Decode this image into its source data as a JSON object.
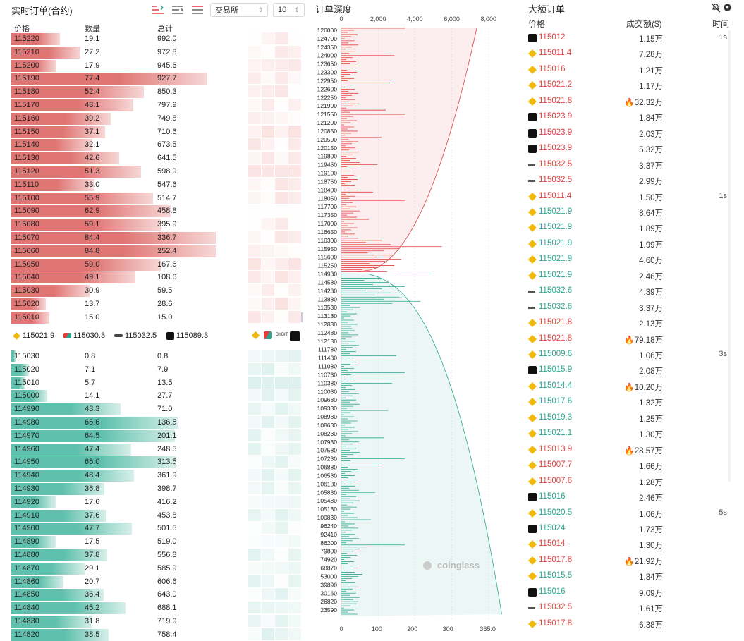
{
  "orderbook": {
    "title": "实时订单(合约)",
    "exchange_select": "交易所",
    "depth_select": "10",
    "price_header": "价格",
    "qty_header": "数量",
    "total_header": "总计",
    "asks": [
      [
        "115220",
        "19.1",
        "992.0"
      ],
      [
        "115210",
        "27.2",
        "972.8"
      ],
      [
        "115200",
        "17.9",
        "945.6"
      ],
      [
        "115190",
        "77.4",
        "927.7"
      ],
      [
        "115180",
        "52.4",
        "850.3"
      ],
      [
        "115170",
        "48.1",
        "797.9"
      ],
      [
        "115160",
        "39.2",
        "749.8"
      ],
      [
        "115150",
        "37.1",
        "710.6"
      ],
      [
        "115140",
        "32.1",
        "673.5"
      ],
      [
        "115130",
        "42.6",
        "641.5"
      ],
      [
        "115120",
        "51.3",
        "598.9"
      ],
      [
        "115110",
        "33.0",
        "547.6"
      ],
      [
        "115100",
        "55.9",
        "514.7"
      ],
      [
        "115090",
        "62.9",
        "458.8"
      ],
      [
        "115080",
        "59.1",
        "395.9"
      ],
      [
        "115070",
        "84.4",
        "336.7"
      ],
      [
        "115060",
        "84.8",
        "252.4"
      ],
      [
        "115050",
        "59.0",
        "167.6"
      ],
      [
        "115040",
        "49.1",
        "108.6"
      ],
      [
        "115030",
        "30.9",
        "59.5"
      ],
      [
        "115020",
        "13.7",
        "28.6"
      ],
      [
        "115010",
        "15.0",
        "15.0"
      ]
    ],
    "bids": [
      [
        "115030",
        "0.8",
        "0.8"
      ],
      [
        "115020",
        "7.1",
        "7.9"
      ],
      [
        "115010",
        "5.7",
        "13.5"
      ],
      [
        "115000",
        "14.1",
        "27.7"
      ],
      [
        "114990",
        "43.3",
        "71.0"
      ],
      [
        "114980",
        "65.6",
        "136.5"
      ],
      [
        "114970",
        "64.5",
        "201.1"
      ],
      [
        "114960",
        "47.4",
        "248.5"
      ],
      [
        "114950",
        "65.0",
        "313.5"
      ],
      [
        "114940",
        "48.4",
        "361.9"
      ],
      [
        "114930",
        "36.8",
        "398.7"
      ],
      [
        "114920",
        "17.6",
        "416.2"
      ],
      [
        "114910",
        "37.6",
        "453.8"
      ],
      [
        "114900",
        "47.7",
        "501.5"
      ],
      [
        "114890",
        "17.5",
        "519.0"
      ],
      [
        "114880",
        "37.8",
        "556.8"
      ],
      [
        "114870",
        "29.1",
        "585.9"
      ],
      [
        "114860",
        "20.7",
        "606.6"
      ],
      [
        "114850",
        "36.4",
        "643.0"
      ],
      [
        "114840",
        "45.2",
        "688.1"
      ],
      [
        "114830",
        "31.8",
        "719.9"
      ],
      [
        "114820",
        "38.5",
        "758.4"
      ]
    ],
    "exchange_prices": [
      {
        "icon": "binance-icon",
        "price": "115021.9"
      },
      {
        "icon": "bybit-icon",
        "price": "115030.3"
      },
      {
        "icon": "bitget-icon",
        "price": "115032.5"
      },
      {
        "icon": "okx-icon",
        "price": "115089.3"
      }
    ]
  },
  "depth": {
    "title": "订单深度",
    "top_ticks": [
      "0",
      "2,000",
      "4,000",
      "6,000",
      "8,000"
    ],
    "bottom_ticks": [
      "0",
      "100",
      "200",
      "300",
      "365.0"
    ],
    "price_labels": [
      "126000",
      "124700",
      "124350",
      "124000",
      "123650",
      "123300",
      "122950",
      "122600",
      "122250",
      "121900",
      "121550",
      "121200",
      "120850",
      "120500",
      "120150",
      "119800",
      "119450",
      "119100",
      "118750",
      "118400",
      "118050",
      "117700",
      "117350",
      "117000",
      "116650",
      "116300",
      "115950",
      "115600",
      "115250",
      "114930",
      "114580",
      "114230",
      "113880",
      "113530",
      "113180",
      "112830",
      "112480",
      "112130",
      "111780",
      "111430",
      "111080",
      "110730",
      "110380",
      "110030",
      "109680",
      "109330",
      "108980",
      "108630",
      "108280",
      "107930",
      "107580",
      "107230",
      "106880",
      "106530",
      "106180",
      "105830",
      "105480",
      "105130",
      "100830",
      "96240",
      "92410",
      "86200",
      "79800",
      "74920",
      "68870",
      "53000",
      "39890",
      "30160",
      "26820",
      "23590"
    ],
    "watermark": "coinglass",
    "ask_color": "#e2403f",
    "bid_color": "#2aa58f"
  },
  "large_orders": {
    "title": "大额订单",
    "price_header": "价格",
    "amount_header": "成交额($)",
    "time_header": "时间",
    "rows": [
      [
        "okx",
        "115012",
        "1.15万",
        "1s",
        "r"
      ],
      [
        "binance",
        "115011.4",
        "7.28万",
        "",
        "r"
      ],
      [
        "binance",
        "115016",
        "1.21万",
        "",
        "r"
      ],
      [
        "binance",
        "115021.2",
        "1.17万",
        "",
        "r"
      ],
      [
        "binance",
        "115021.8",
        "32.32万",
        "",
        "r"
      ],
      [
        "okx",
        "115023.9",
        "1.84万",
        "",
        "r"
      ],
      [
        "okx",
        "115023.9",
        "2.03万",
        "",
        "r"
      ],
      [
        "okx",
        "115023.9",
        "5.32万",
        "",
        "r"
      ],
      [
        "bitget",
        "115032.5",
        "3.37万",
        "",
        "r"
      ],
      [
        "bitget",
        "115032.5",
        "2.99万",
        "",
        "r"
      ],
      [
        "binance",
        "115011.4",
        "1.50万",
        "1s",
        "r"
      ],
      [
        "binance",
        "115021.9",
        "8.64万",
        "",
        "g"
      ],
      [
        "binance",
        "115021.9",
        "1.89万",
        "",
        "g"
      ],
      [
        "binance",
        "115021.9",
        "1.99万",
        "",
        "g"
      ],
      [
        "binance",
        "115021.9",
        "4.60万",
        "",
        "g"
      ],
      [
        "binance",
        "115021.9",
        "2.46万",
        "",
        "g"
      ],
      [
        "bitget",
        "115032.6",
        "4.39万",
        "",
        "g"
      ],
      [
        "bitget",
        "115032.6",
        "3.37万",
        "",
        "g"
      ],
      [
        "binance",
        "115021.8",
        "2.13万",
        "",
        "r"
      ],
      [
        "binance",
        "115021.8",
        "79.18万",
        "",
        "r"
      ],
      [
        "binance",
        "115009.6",
        "1.06万",
        "3s",
        "g"
      ],
      [
        "okx",
        "115015.9",
        "2.08万",
        "",
        "g"
      ],
      [
        "binance",
        "115014.4",
        "10.20万",
        "",
        "g"
      ],
      [
        "binance",
        "115017.6",
        "1.32万",
        "",
        "g"
      ],
      [
        "binance",
        "115019.3",
        "1.25万",
        "",
        "g"
      ],
      [
        "binance",
        "115021.1",
        "1.30万",
        "",
        "g"
      ],
      [
        "binance",
        "115013.9",
        "28.57万",
        "",
        "r"
      ],
      [
        "binance",
        "115007.7",
        "1.66万",
        "",
        "r"
      ],
      [
        "binance",
        "115007.6",
        "1.28万",
        "",
        "r"
      ],
      [
        "okx",
        "115016",
        "2.46万",
        "",
        "g"
      ],
      [
        "binance",
        "115020.5",
        "1.06万",
        "5s",
        "g"
      ],
      [
        "okx",
        "115024",
        "1.73万",
        "",
        "g"
      ],
      [
        "binance",
        "115014",
        "1.30万",
        "",
        "r"
      ],
      [
        "binance",
        "115017.8",
        "21.92万",
        "",
        "r"
      ],
      [
        "binance",
        "115015.5",
        "1.84万",
        "",
        "g"
      ],
      [
        "okx",
        "115016",
        "9.09万",
        "",
        "g"
      ],
      [
        "bitget",
        "115032.5",
        "1.61万",
        "",
        "r"
      ],
      [
        "binance",
        "115017.8",
        "6.38万",
        "",
        "r"
      ]
    ],
    "fire_threshold": 100000
  }
}
